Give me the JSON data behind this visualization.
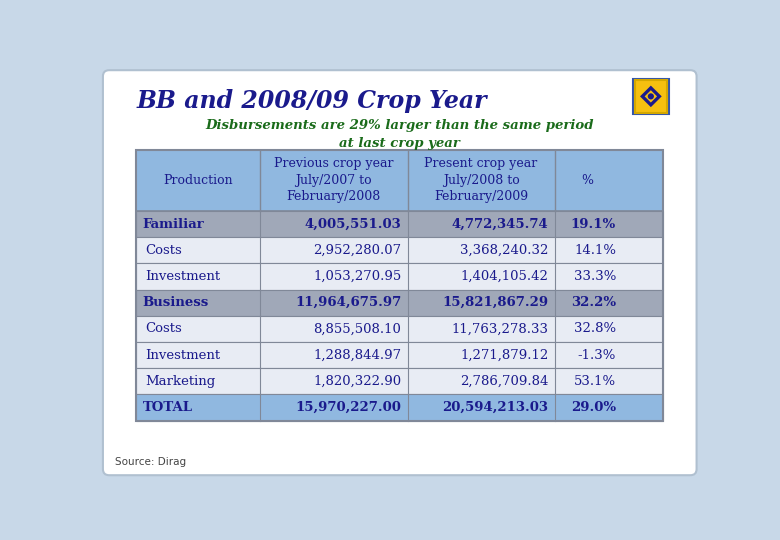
{
  "title": "BB and 2008/09 Crop Year",
  "subtitle": "Disbursements are 29% larger than the same period\nat last crop year",
  "source": "Source: Dirag",
  "col_headers": [
    "Production",
    "Previous crop year\nJuly/2007 to\nFebruary/2008",
    "Present crop year\nJuly/2008 to\nFebruary/2009",
    "%"
  ],
  "rows": [
    {
      "label": "Familiar",
      "prev": "4,005,551.03",
      "pres": "4,772,345.74",
      "pct": "19.1%",
      "bold": true
    },
    {
      "label": "Costs",
      "prev": "2,952,280.07",
      "pres": "3,368,240.32",
      "pct": "14.1%",
      "bold": false
    },
    {
      "label": "Investment",
      "prev": "1,053,270.95",
      "pres": "1,404,105.42",
      "pct": "33.3%",
      "bold": false
    },
    {
      "label": "Business",
      "prev": "11,964,675.97",
      "pres": "15,821,867.29",
      "pct": "32.2%",
      "bold": true
    },
    {
      "label": "Costs",
      "prev": "8,855,508.10",
      "pres": "11,763,278.33",
      "pct": "32.8%",
      "bold": false
    },
    {
      "label": "Investment",
      "prev": "1,288,844.97",
      "pres": "1,271,879.12",
      "pct": "-1.3%",
      "bold": false
    },
    {
      "label": "Marketing",
      "prev": "1,820,322.90",
      "pres": "2,786,709.84",
      "pct": "53.1%",
      "bold": false
    },
    {
      "label": "TOTAL",
      "prev": "15,970,227.00",
      "pres": "20,594,213.03",
      "pct": "29.0%",
      "bold": true
    }
  ],
  "outer_bg": "#c8d8e8",
  "card_bg": "#ffffff",
  "title_color": "#1a1a8c",
  "subtitle_color": "#1a6b1a",
  "text_color": "#1a1a8c",
  "header_bg": "#90b8e0",
  "bold_row_bg": "#a0a8b8",
  "normal_row_bg": "#e8ecf4",
  "total_row_bg": "#90b8e0",
  "border_color": "#808898",
  "logo_bg": "#f5c010",
  "logo_diamond": "#1a1a8c"
}
